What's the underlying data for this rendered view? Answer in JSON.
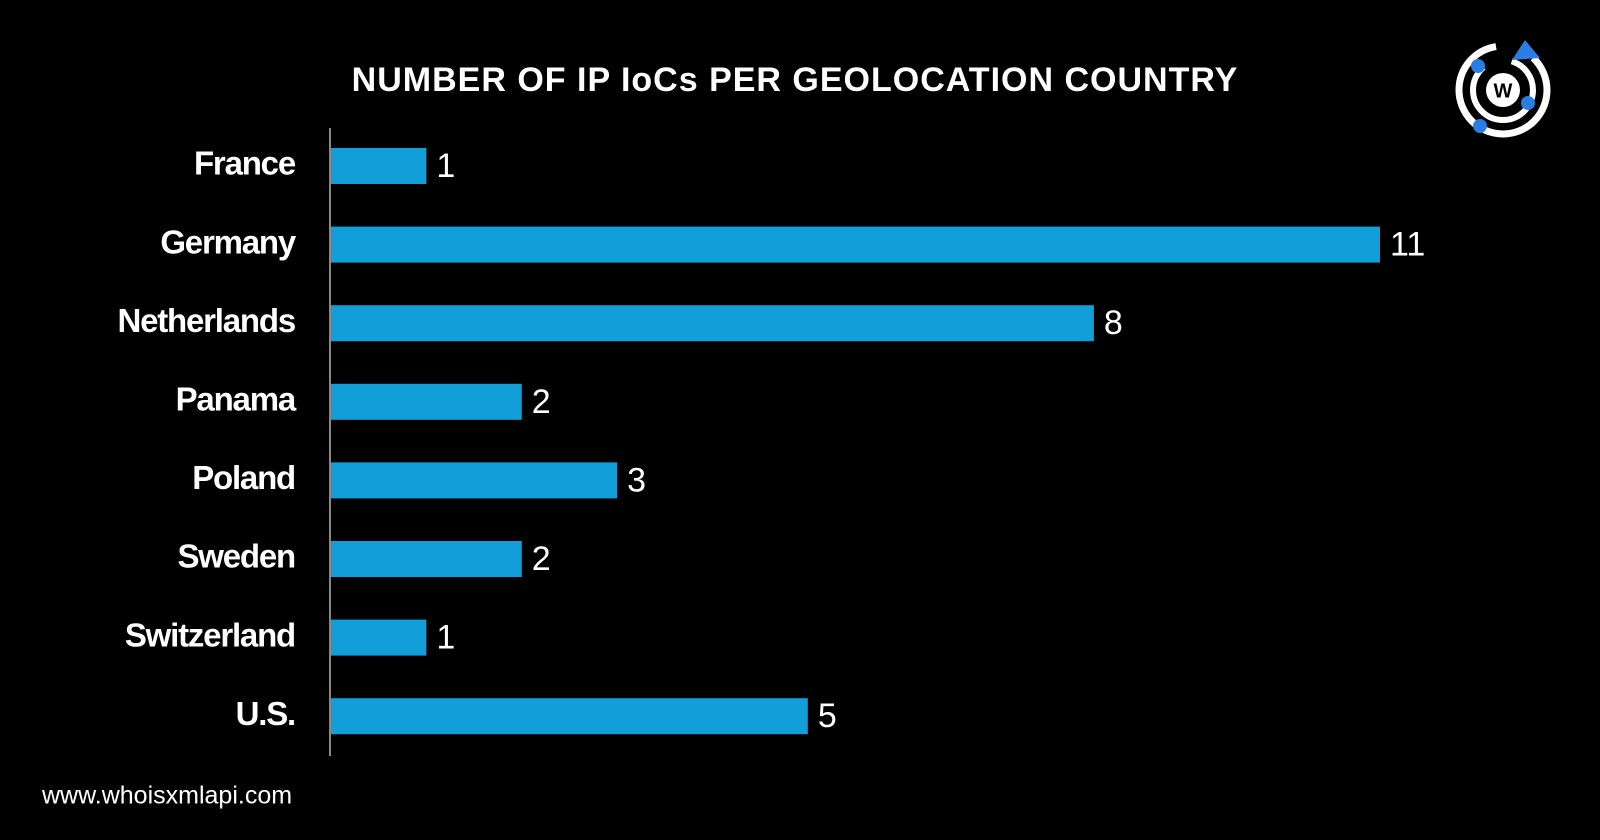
{
  "chart_data": {
    "type": "barh",
    "title": "NUMBER OF IP IoCs PER GEOLOCATION COUNTRY",
    "categories": [
      "France",
      "Germany",
      "Netherlands",
      "Panama",
      "Poland",
      "Sweden",
      "Switzerland",
      "U.S."
    ],
    "values": [
      1,
      11,
      8,
      2,
      3,
      2,
      1,
      5
    ],
    "color": "#129fd9"
  },
  "footer": "www.whoisxmlapi.com",
  "logo": "W"
}
